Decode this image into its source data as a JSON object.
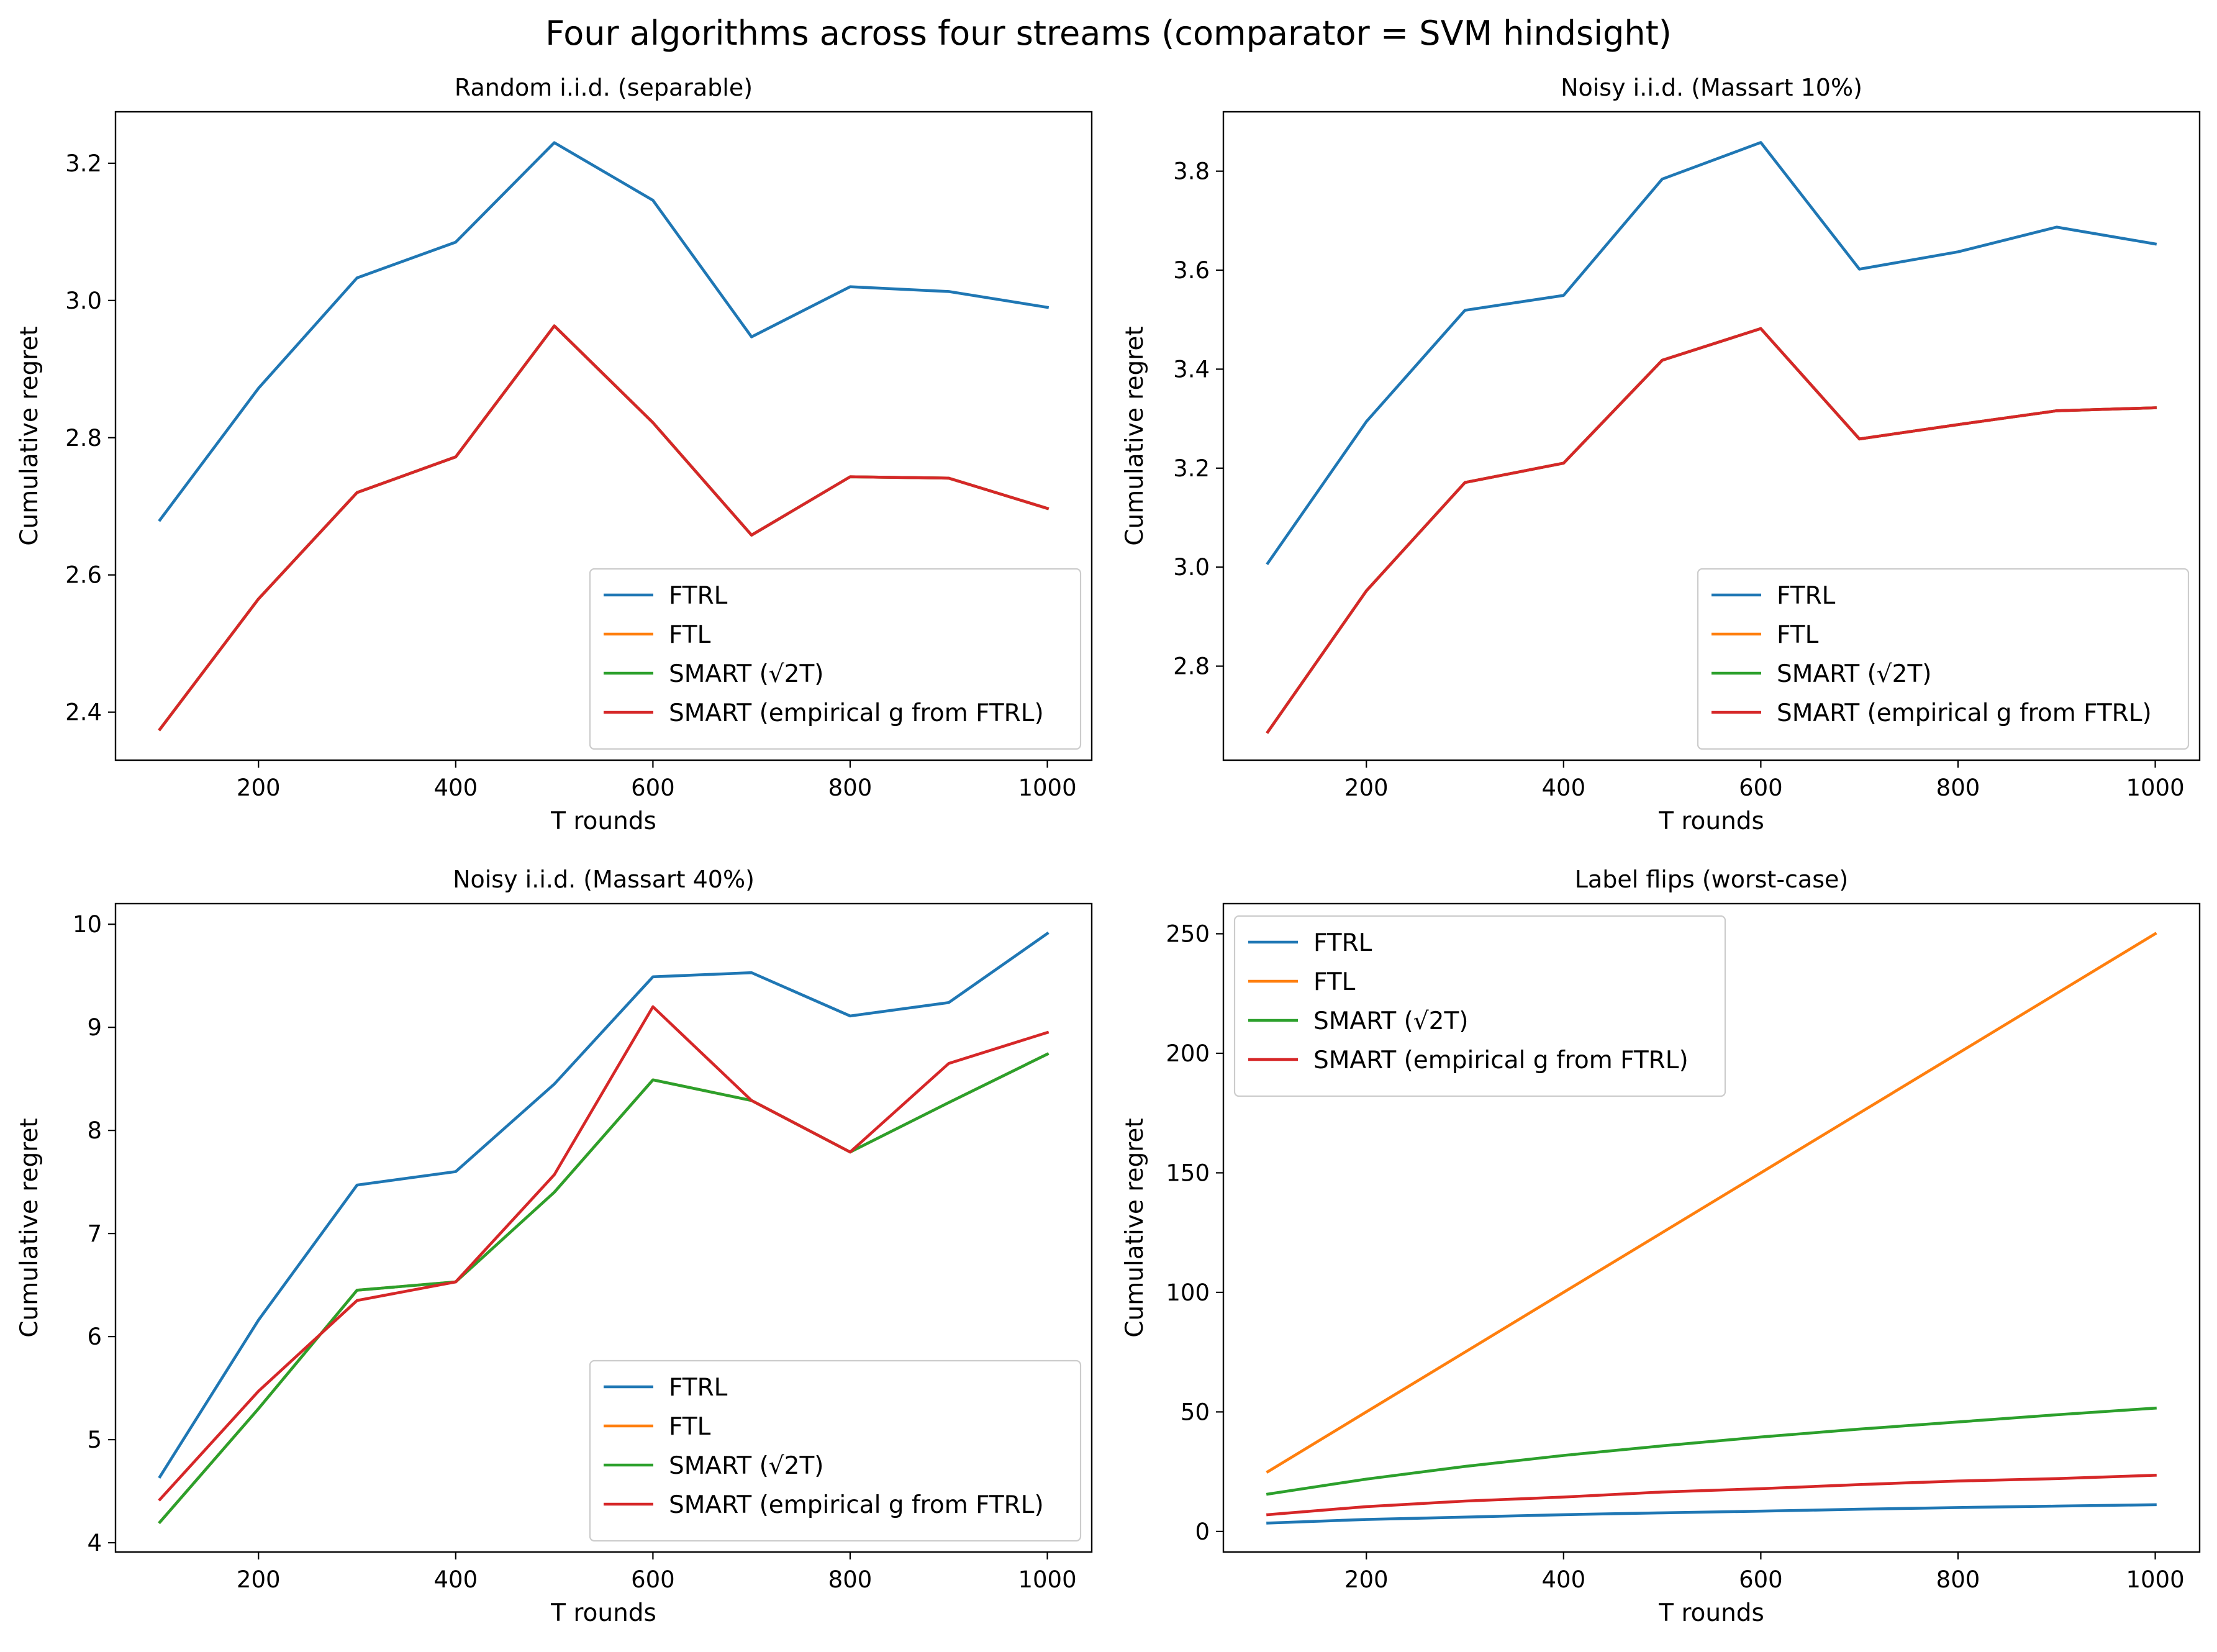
{
  "figure": {
    "title": "Four algorithms across four streams (comparator = SVM hindsight)"
  },
  "colors": {
    "FTRL": "#1f77b4",
    "FTL": "#ff7f0e",
    "SMART_sqrt": "#2ca02c",
    "SMART_emp": "#d62728"
  },
  "chart_data": [
    {
      "type": "line",
      "title": "Random i.i.d. (separable)",
      "xlabel": "T rounds",
      "ylabel": "Cumulative regret",
      "x": [
        100,
        200,
        300,
        400,
        500,
        600,
        700,
        800,
        900,
        1000
      ],
      "xlim": [
        55,
        1045
      ],
      "ylim": [
        2.33,
        3.275
      ],
      "xticks": [
        200,
        400,
        600,
        800,
        1000
      ],
      "yticks": [
        2.4,
        2.6,
        2.8,
        3.0,
        3.2
      ],
      "ytick_decimals": 1,
      "legend_position": "lower-right",
      "legend": [
        "FTRL",
        "FTL",
        "SMART (√2T)",
        "SMART (empirical g from FTRL)"
      ],
      "series": [
        {
          "name": "FTRL",
          "color_key": "FTRL",
          "values": [
            2.68,
            2.872,
            3.033,
            3.085,
            3.23,
            3.146,
            2.947,
            3.02,
            3.013,
            2.99
          ]
        },
        {
          "name": "FTL",
          "color_key": "FTL",
          "values": [
            2.375,
            2.565,
            2.72,
            2.772,
            2.963,
            2.822,
            2.658,
            2.743,
            2.741,
            2.697
          ]
        },
        {
          "name": "SMART (√2T)",
          "color_key": "SMART_sqrt",
          "values": [
            2.375,
            2.565,
            2.72,
            2.772,
            2.963,
            2.822,
            2.658,
            2.743,
            2.741,
            2.697
          ]
        },
        {
          "name": "SMART (empirical g from FTRL)",
          "color_key": "SMART_emp",
          "values": [
            2.375,
            2.565,
            2.72,
            2.772,
            2.963,
            2.822,
            2.658,
            2.743,
            2.741,
            2.697
          ]
        }
      ]
    },
    {
      "type": "line",
      "title": "Noisy i.i.d. (Massart 10%)",
      "xlabel": "T rounds",
      "ylabel": "Cumulative regret",
      "x": [
        100,
        200,
        300,
        400,
        500,
        600,
        700,
        800,
        900,
        1000
      ],
      "xlim": [
        55,
        1045
      ],
      "ylim": [
        2.61,
        3.92
      ],
      "xticks": [
        200,
        400,
        600,
        800,
        1000
      ],
      "yticks": [
        2.8,
        3.0,
        3.2,
        3.4,
        3.6,
        3.8
      ],
      "ytick_decimals": 1,
      "legend_position": "lower-right",
      "legend": [
        "FTRL",
        "FTL",
        "SMART (√2T)",
        "SMART (empirical g from FTRL)"
      ],
      "series": [
        {
          "name": "FTRL",
          "color_key": "FTRL",
          "values": [
            3.008,
            3.294,
            3.519,
            3.549,
            3.784,
            3.858,
            3.602,
            3.637,
            3.687,
            3.653
          ]
        },
        {
          "name": "FTL",
          "color_key": "FTL",
          "values": [
            2.667,
            2.952,
            3.171,
            3.21,
            3.418,
            3.482,
            3.259,
            3.288,
            3.316,
            3.322
          ]
        },
        {
          "name": "SMART (√2T)",
          "color_key": "SMART_sqrt",
          "values": [
            2.667,
            2.952,
            3.171,
            3.21,
            3.418,
            3.482,
            3.259,
            3.288,
            3.316,
            3.322
          ]
        },
        {
          "name": "SMART (empirical g from FTRL)",
          "color_key": "SMART_emp",
          "values": [
            2.667,
            2.952,
            3.171,
            3.21,
            3.418,
            3.482,
            3.259,
            3.288,
            3.316,
            3.322
          ]
        }
      ]
    },
    {
      "type": "line",
      "title": "Noisy i.i.d. (Massart 40%)",
      "xlabel": "T rounds",
      "ylabel": "Cumulative regret",
      "x": [
        100,
        200,
        300,
        400,
        500,
        600,
        700,
        800,
        900,
        1000
      ],
      "xlim": [
        55,
        1045
      ],
      "ylim": [
        3.91,
        10.2
      ],
      "xticks": [
        200,
        400,
        600,
        800,
        1000
      ],
      "yticks": [
        4,
        5,
        6,
        7,
        8,
        9,
        10
      ],
      "ytick_decimals": 0,
      "legend_position": "lower-right",
      "legend": [
        "FTRL",
        "FTL",
        "SMART (√2T)",
        "SMART (empirical g from FTRL)"
      ],
      "series": [
        {
          "name": "FTRL",
          "color_key": "FTRL",
          "values": [
            4.64,
            6.16,
            7.47,
            7.6,
            8.45,
            9.49,
            9.53,
            9.11,
            9.24,
            9.91
          ]
        },
        {
          "name": "FTL",
          "color_key": "FTL",
          "values": [
            4.2,
            5.3,
            6.45,
            6.53,
            7.4,
            8.49,
            8.29,
            7.79,
            8.27,
            8.74
          ]
        },
        {
          "name": "SMART (√2T)",
          "color_key": "SMART_sqrt",
          "values": [
            4.2,
            5.3,
            6.45,
            6.53,
            7.4,
            8.49,
            8.29,
            7.79,
            8.27,
            8.74
          ]
        },
        {
          "name": "SMART (empirical g from FTRL)",
          "color_key": "SMART_emp",
          "values": [
            4.42,
            5.47,
            6.35,
            6.53,
            7.57,
            9.2,
            8.29,
            7.79,
            8.65,
            8.95
          ]
        }
      ]
    },
    {
      "type": "line",
      "title": "Label flips (worst-case)",
      "xlabel": "T rounds",
      "ylabel": "Cumulative regret",
      "x": [
        100,
        200,
        300,
        400,
        500,
        600,
        700,
        800,
        900,
        1000
      ],
      "xlim": [
        55,
        1045
      ],
      "ylim": [
        -8.6,
        262.6
      ],
      "xticks": [
        200,
        400,
        600,
        800,
        1000
      ],
      "yticks": [
        0,
        50,
        100,
        150,
        200,
        250
      ],
      "ytick_decimals": 0,
      "legend_position": "upper-left",
      "legend": [
        "FTRL",
        "FTL",
        "SMART (√2T)",
        "SMART (empirical g from FTRL)"
      ],
      "series": [
        {
          "name": "FTRL",
          "color_key": "FTRL",
          "values": [
            3.5,
            5,
            6,
            7,
            7.8,
            8.5,
            9.3,
            10,
            10.6,
            11.2
          ]
        },
        {
          "name": "FTL",
          "color_key": "FTL",
          "values": [
            25,
            50,
            75,
            100,
            125,
            150,
            175,
            200,
            225,
            250
          ]
        },
        {
          "name": "SMART (√2T)",
          "color_key": "SMART_sqrt",
          "values": [
            15.6,
            21.9,
            27.2,
            31.8,
            35.8,
            39.5,
            42.8,
            45.8,
            48.8,
            51.6
          ]
        },
        {
          "name": "SMART (empirical g from FTRL)",
          "color_key": "SMART_emp",
          "values": [
            7,
            10.4,
            12.7,
            14.4,
            16.5,
            17.9,
            19.6,
            21.1,
            22.1,
            23.5
          ]
        }
      ]
    }
  ]
}
